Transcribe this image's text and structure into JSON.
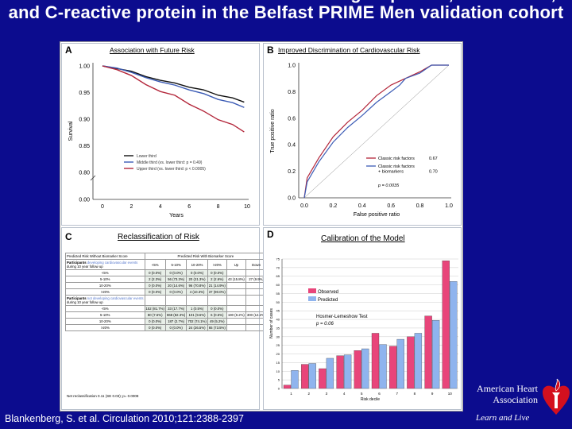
{
  "slide": {
    "title": "Results of the biomarker score including troponin I, NT-broBNP, and C-reactive protein in the Belfast PRIME Men validation cohort",
    "citation": "Blankenberg, S. et al. Circulation 2010;121:2388-2397",
    "logo": {
      "name": "American Heart Association",
      "tagline": "Learn and Live",
      "colors": {
        "heart": "#d4101e"
      }
    }
  },
  "colors": {
    "background": "#0c0c8e",
    "black": "#111111",
    "blue": "#3b5bb5",
    "red": "#b3263a",
    "observed": "#e8457a",
    "predicted": "#8fb4ee"
  },
  "chart_data": [
    {
      "panel": "A",
      "type": "line",
      "title": "Association with Future Risk",
      "xlabel": "Years",
      "ylabel": "Survival",
      "xlim": [
        0,
        10
      ],
      "xticks": [
        "0",
        "2",
        "4",
        "6",
        "8",
        "10"
      ],
      "yticks": [
        "0.00",
        "0.80",
        "0.85",
        "0.90",
        "0.95",
        "1.00"
      ],
      "ylim": [
        0.8,
        1.0
      ],
      "axis_break": true,
      "legend": "bottom-center",
      "series": [
        {
          "name": "Lower third",
          "color": "#111111",
          "x": [
            0,
            1,
            2,
            3,
            4,
            5,
            6,
            7,
            8,
            9,
            9.8
          ],
          "y": [
            1,
            0.995,
            0.99,
            0.98,
            0.973,
            0.968,
            0.96,
            0.955,
            0.945,
            0.94,
            0.932
          ]
        },
        {
          "name": "Middle third (vs. lower third: p = 0.49)",
          "color": "#3b5bb5",
          "x": [
            0,
            1,
            2,
            3,
            4,
            5,
            6,
            7,
            8,
            9,
            9.8
          ],
          "y": [
            1,
            0.996,
            0.988,
            0.978,
            0.97,
            0.964,
            0.955,
            0.948,
            0.937,
            0.931,
            0.922
          ]
        },
        {
          "name": "Upper third (vs. lower third: p < 0.0005)",
          "color": "#b3263a",
          "x": [
            0,
            1,
            2,
            3,
            4,
            5,
            6,
            7,
            8,
            9,
            9.8
          ],
          "y": [
            1,
            0.993,
            0.982,
            0.965,
            0.952,
            0.945,
            0.928,
            0.915,
            0.899,
            0.89,
            0.876
          ]
        }
      ]
    },
    {
      "panel": "B",
      "type": "line",
      "title": "Improved Discrimination of Cardiovascular Risk",
      "xlabel": "False positive ratio",
      "ylabel": "True positive ratio",
      "xlim": [
        0,
        1
      ],
      "ylim": [
        0,
        1
      ],
      "xticks": [
        "0.0",
        "0.2",
        "0.4",
        "0.6",
        "0.8",
        "1.0"
      ],
      "yticks": [
        "0.0",
        "0.2",
        "0.4",
        "0.6",
        "0.8",
        "1.0"
      ],
      "legend": "bottom-right",
      "annotation": "p = 0.0035",
      "series": [
        {
          "name": "Classic risk factors",
          "auc": "0.67",
          "color": "#b3263a",
          "x": [
            0,
            0.02,
            0.1,
            0.2,
            0.3,
            0.4,
            0.5,
            0.6,
            0.7,
            0.8,
            0.88,
            1
          ],
          "y": [
            0,
            0.15,
            0.3,
            0.46,
            0.57,
            0.66,
            0.77,
            0.85,
            0.9,
            0.95,
            1,
            1
          ]
        },
        {
          "name": "Classic risk factors + biomarkers",
          "auc": "0.70",
          "color": "#3b5bb5",
          "x": [
            0,
            0.02,
            0.1,
            0.2,
            0.3,
            0.4,
            0.5,
            0.6,
            0.66,
            0.7,
            0.8,
            0.88,
            1
          ],
          "y": [
            0,
            0.12,
            0.27,
            0.42,
            0.53,
            0.62,
            0.72,
            0.8,
            0.85,
            0.9,
            0.94,
            1,
            1
          ]
        }
      ]
    },
    {
      "panel": "C",
      "type": "table",
      "title": "Reclassification of Risk",
      "header_left": "Predicted Risk Without Biomarker Score",
      "header_right": "Predicted Risk With Biomarker Score",
      "columns": [
        "<5%",
        "5-10%",
        "10-20%",
        ">20%",
        "Up",
        "Down"
      ],
      "groups": [
        {
          "label_a": "Participants ",
          "label_b": "developing cardiovascular events",
          "label_c": "during 10 year follow up",
          "rows": [
            [
              "<5%",
              "0 (0.0%)",
              "0 (0.0%)",
              "0 (0.0%)",
              "0 (0.0%)",
              "",
              ""
            ],
            [
              "5-10%",
              "2 (2.3%)",
              "56 (73.3%)",
              "20 (21.3%)",
              "2 (2.6%)",
              "43 (15.8%)",
              "27 (9.9%)"
            ],
            [
              "10-20%",
              "0 (0.0%)",
              "20 (14.6%)",
              "96 (70.8%)",
              "21 (14.9%)",
              "",
              ""
            ],
            [
              ">20%",
              "0 (0.0%)",
              "0 (0.0%)",
              "4 (10.3%)",
              "37 (90.0%)",
              "",
              ""
            ]
          ]
        },
        {
          "label_a": "Participants ",
          "label_b": "not developing cardiovascular events",
          "label_c": "during 10 year follow up",
          "rows": [
            [
              "<5%",
              "152 (81.7%)",
              "33 (17.7%)",
              "1 (0.5%)",
              "0 (0.0%)",
              "",
              ""
            ],
            [
              "5-10%",
              "80 (7.6%)",
              "868 (82.3%)",
              "101 (9.6%)",
              "6 (0.5%)",
              "190 (8.2%)",
              "300 (12.2%)"
            ],
            [
              "10-20%",
              "0 (0.0%)",
              "187 (2.7%)",
              "702 (74.1%)",
              "49 (5.2%)",
              "",
              ""
            ],
            [
              ">20%",
              "0 (0.0%)",
              "0 (0.0%)",
              "24 (26.5%)",
              "65 (73.5%)",
              "",
              ""
            ]
          ]
        }
      ],
      "footnote": "Net reclassification 0.11 (SE 0.03); p= 0.0008"
    },
    {
      "panel": "D",
      "type": "bar",
      "title": "Calibration of the Model",
      "xlabel": "Risk decile",
      "ylabel": "Number of cases",
      "ylim": [
        0,
        75
      ],
      "yticks": [
        "0",
        "5",
        "10",
        "15",
        "20",
        "25",
        "30",
        "35",
        "40",
        "45",
        "50",
        "55",
        "60",
        "65",
        "70",
        "75"
      ],
      "grid": true,
      "legend": "top-left",
      "annotation_1": "Hosmer-Lemeshow Test",
      "annotation_2": "p = 0.06",
      "categories": [
        "1",
        "2",
        "3",
        "4",
        "5",
        "6",
        "7",
        "8",
        "9",
        "10"
      ],
      "series": [
        {
          "name": "Observed",
          "color": "#e8457a",
          "values": [
            2,
            14,
            11.5,
            19,
            22,
            32,
            24.5,
            30,
            42,
            74
          ]
        },
        {
          "name": "Predicted",
          "color": "#8fb4ee",
          "values": [
            10.5,
            14.5,
            17.5,
            19.5,
            23,
            25.5,
            28.5,
            32,
            39.5,
            62
          ]
        }
      ]
    }
  ]
}
